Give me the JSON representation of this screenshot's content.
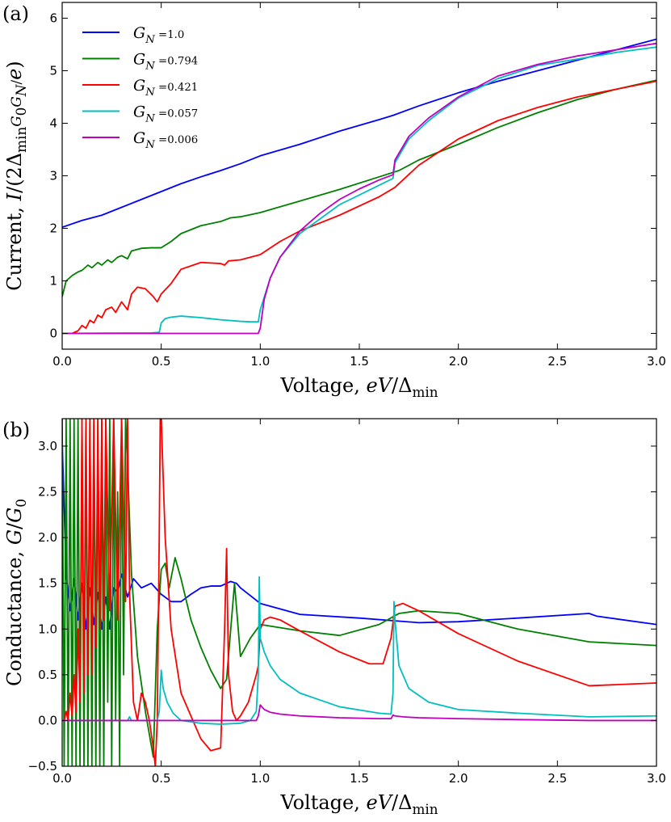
{
  "chart_data": [
    {
      "type": "line",
      "panel_label": "(a)",
      "xlabel": "Voltage, eV/Δmin",
      "ylabel": "Current, I/(2ΔminG0GN/e)",
      "xlim": [
        0.0,
        3.0
      ],
      "ylim": [
        -0.3,
        6.3
      ],
      "xticks": [
        "0.0",
        "0.5",
        "1.0",
        "1.5",
        "2.0",
        "2.5",
        "3.0"
      ],
      "xtick_values": [
        0.0,
        0.5,
        1.0,
        1.5,
        2.0,
        2.5,
        3.0
      ],
      "yticks": [
        "0",
        "1",
        "2",
        "3",
        "4",
        "5",
        "6"
      ],
      "ytick_values": [
        0,
        1,
        2,
        3,
        4,
        5,
        6
      ],
      "legend_position": "upper-left",
      "series": [
        {
          "name": "G_N =1.0",
          "color": "#0000ff",
          "x": [
            0.0,
            0.1,
            0.2,
            0.3,
            0.4,
            0.5,
            0.6,
            0.7,
            0.8,
            0.9,
            1.0,
            1.2,
            1.4,
            1.6,
            1.67,
            1.8,
            2.0,
            2.2,
            2.4,
            2.6,
            2.8,
            3.0
          ],
          "y": [
            2.02,
            2.15,
            2.25,
            2.4,
            2.55,
            2.7,
            2.85,
            2.98,
            3.1,
            3.23,
            3.38,
            3.6,
            3.85,
            4.07,
            4.15,
            4.33,
            4.58,
            4.8,
            5.0,
            5.2,
            5.4,
            5.6
          ]
        },
        {
          "name": "G_N =0.794",
          "color": "#008000",
          "x": [
            0.0,
            0.02,
            0.05,
            0.08,
            0.1,
            0.13,
            0.15,
            0.18,
            0.2,
            0.23,
            0.25,
            0.28,
            0.3,
            0.33,
            0.35,
            0.4,
            0.45,
            0.5,
            0.55,
            0.6,
            0.7,
            0.8,
            0.85,
            0.9,
            1.0,
            1.2,
            1.4,
            1.6,
            1.7,
            1.8,
            2.0,
            2.2,
            2.4,
            2.6,
            2.8,
            3.0
          ],
          "y": [
            0.7,
            1.0,
            1.1,
            1.17,
            1.2,
            1.3,
            1.25,
            1.35,
            1.3,
            1.4,
            1.35,
            1.45,
            1.48,
            1.42,
            1.57,
            1.62,
            1.63,
            1.63,
            1.75,
            1.9,
            2.05,
            2.13,
            2.2,
            2.22,
            2.3,
            2.52,
            2.74,
            2.98,
            3.1,
            3.3,
            3.6,
            3.92,
            4.2,
            4.45,
            4.65,
            4.82
          ]
        },
        {
          "name": "G_N =0.421",
          "color": "#ff0000",
          "x": [
            0.05,
            0.08,
            0.1,
            0.12,
            0.14,
            0.16,
            0.18,
            0.2,
            0.22,
            0.25,
            0.27,
            0.3,
            0.33,
            0.35,
            0.38,
            0.42,
            0.46,
            0.48,
            0.5,
            0.55,
            0.6,
            0.7,
            0.8,
            0.82,
            0.84,
            0.9,
            1.0,
            1.1,
            1.2,
            1.4,
            1.6,
            1.68,
            1.8,
            2.0,
            2.2,
            2.4,
            2.6,
            2.8,
            3.0
          ],
          "y": [
            0.0,
            0.05,
            0.15,
            0.1,
            0.25,
            0.2,
            0.35,
            0.3,
            0.45,
            0.5,
            0.4,
            0.6,
            0.45,
            0.75,
            0.88,
            0.85,
            0.7,
            0.6,
            0.75,
            0.95,
            1.22,
            1.35,
            1.33,
            1.3,
            1.38,
            1.4,
            1.5,
            1.75,
            1.95,
            2.25,
            2.6,
            2.78,
            3.2,
            3.7,
            4.05,
            4.3,
            4.5,
            4.65,
            4.8
          ]
        },
        {
          "name": "G_N =0.057",
          "color": "#00bfbf",
          "x": [
            0.0,
            0.45,
            0.49,
            0.5,
            0.52,
            0.55,
            0.6,
            0.7,
            0.8,
            0.9,
            0.95,
            0.99,
            1.0,
            1.05,
            1.1,
            1.2,
            1.4,
            1.6,
            1.67,
            1.68,
            1.75,
            1.85,
            2.0,
            2.2,
            2.4,
            2.6,
            2.8,
            3.0
          ],
          "y": [
            0.0,
            0.01,
            0.02,
            0.2,
            0.28,
            0.31,
            0.33,
            0.3,
            0.26,
            0.23,
            0.22,
            0.22,
            0.45,
            1.05,
            1.45,
            1.9,
            2.45,
            2.82,
            2.95,
            3.25,
            3.7,
            4.05,
            4.48,
            4.85,
            5.1,
            5.22,
            5.35,
            5.45
          ]
        },
        {
          "name": "G_N =0.006",
          "color": "#bf00bf",
          "x": [
            0.0,
            0.99,
            1.0,
            1.02,
            1.05,
            1.1,
            1.2,
            1.3,
            1.4,
            1.5,
            1.6,
            1.67,
            1.68,
            1.75,
            1.85,
            2.0,
            2.2,
            2.4,
            2.6,
            2.8,
            3.0
          ],
          "y": [
            0.0,
            0.0,
            0.1,
            0.65,
            1.05,
            1.45,
            1.95,
            2.28,
            2.55,
            2.75,
            2.92,
            3.02,
            3.3,
            3.75,
            4.1,
            4.5,
            4.9,
            5.12,
            5.28,
            5.4,
            5.52
          ]
        }
      ]
    },
    {
      "type": "line",
      "panel_label": "(b)",
      "xlabel": "Voltage, eV/Δmin",
      "ylabel": "Conductance, G/G0",
      "xlim": [
        0.0,
        3.0
      ],
      "ylim": [
        -0.5,
        3.3
      ],
      "xticks": [
        "0.0",
        "0.5",
        "1.0",
        "1.5",
        "2.0",
        "2.5",
        "3.0"
      ],
      "xtick_values": [
        0.0,
        0.5,
        1.0,
        1.5,
        2.0,
        2.5,
        3.0
      ],
      "yticks": [
        "−0.5",
        "0.0",
        "0.5",
        "1.0",
        "1.5",
        "2.0",
        "2.5",
        "3.0"
      ],
      "ytick_values": [
        -0.5,
        0.0,
        0.5,
        1.0,
        1.5,
        2.0,
        2.5,
        3.0
      ],
      "series": [
        {
          "name": "G_N =1.0",
          "color": "#0000ff",
          "x": [
            0.0,
            0.005,
            0.02,
            0.04,
            0.06,
            0.08,
            0.1,
            0.12,
            0.14,
            0.16,
            0.18,
            0.2,
            0.22,
            0.24,
            0.26,
            0.28,
            0.3,
            0.33,
            0.36,
            0.4,
            0.45,
            0.5,
            0.55,
            0.6,
            0.65,
            0.7,
            0.75,
            0.8,
            0.85,
            0.88,
            0.9,
            1.0,
            1.2,
            1.5,
            1.8,
            2.0,
            2.3,
            2.66,
            2.7,
            3.0
          ],
          "y": [
            3.05,
            2.7,
            1.6,
            1.2,
            1.55,
            1.1,
            1.5,
            1.0,
            1.45,
            1.05,
            1.4,
            1.0,
            1.35,
            1.0,
            1.45,
            1.4,
            1.6,
            1.35,
            1.55,
            1.45,
            1.5,
            1.38,
            1.3,
            1.3,
            1.38,
            1.45,
            1.47,
            1.47,
            1.52,
            1.5,
            1.45,
            1.28,
            1.16,
            1.12,
            1.07,
            1.08,
            1.12,
            1.17,
            1.14,
            1.05
          ]
        },
        {
          "name": "G_N =0.794",
          "color": "#008000",
          "x": [
            0.0,
            0.01,
            0.02,
            0.03,
            0.04,
            0.05,
            0.06,
            0.07,
            0.08,
            0.09,
            0.1,
            0.11,
            0.12,
            0.13,
            0.14,
            0.15,
            0.16,
            0.17,
            0.18,
            0.19,
            0.2,
            0.21,
            0.22,
            0.23,
            0.24,
            0.25,
            0.26,
            0.27,
            0.28,
            0.29,
            0.3,
            0.31,
            0.32,
            0.33,
            0.35,
            0.38,
            0.42,
            0.46,
            0.48,
            0.5,
            0.52,
            0.54,
            0.57,
            0.6,
            0.65,
            0.7,
            0.75,
            0.8,
            0.83,
            0.87,
            0.9,
            0.95,
            1.0,
            1.2,
            1.4,
            1.6,
            1.7,
            1.8,
            2.0,
            2.3,
            2.66,
            3.0
          ],
          "y": [
            3.3,
            -0.5,
            3.3,
            -0.5,
            3.3,
            -0.5,
            3.3,
            -0.5,
            3.3,
            -0.5,
            3.3,
            -0.5,
            3.3,
            -0.5,
            3.3,
            -0.5,
            3.3,
            -0.5,
            3.3,
            -0.5,
            3.3,
            -0.5,
            3.3,
            0.2,
            3.3,
            -0.5,
            3.3,
            0.0,
            2.5,
            -0.5,
            3.3,
            0.5,
            3.3,
            2.8,
            1.6,
            0.7,
            0.1,
            -0.4,
            1.0,
            1.65,
            1.72,
            1.45,
            1.78,
            1.55,
            1.1,
            0.8,
            0.55,
            0.35,
            0.45,
            1.5,
            0.7,
            0.9,
            1.05,
            0.98,
            0.93,
            1.05,
            1.17,
            1.2,
            1.17,
            1.0,
            0.86,
            0.82
          ]
        },
        {
          "name": "G_N =0.421",
          "color": "#ff0000",
          "x": [
            0.0,
            0.01,
            0.02,
            0.03,
            0.04,
            0.05,
            0.06,
            0.07,
            0.08,
            0.09,
            0.1,
            0.11,
            0.12,
            0.13,
            0.14,
            0.15,
            0.16,
            0.17,
            0.18,
            0.19,
            0.2,
            0.21,
            0.22,
            0.24,
            0.26,
            0.28,
            0.3,
            0.32,
            0.33,
            0.34,
            0.36,
            0.38,
            0.4,
            0.42,
            0.44,
            0.46,
            0.47,
            0.48,
            0.49,
            0.495,
            0.5,
            0.52,
            0.55,
            0.6,
            0.7,
            0.75,
            0.8,
            0.82,
            0.83,
            0.84,
            0.86,
            0.88,
            0.9,
            0.94,
            0.98,
            0.99,
            1.0,
            1.02,
            1.05,
            1.1,
            1.2,
            1.4,
            1.55,
            1.62,
            1.66,
            1.68,
            1.72,
            1.8,
            2.0,
            2.3,
            2.66,
            3.0
          ],
          "y": [
            0.0,
            0.0,
            0.1,
            0.0,
            0.3,
            0.05,
            0.5,
            0.1,
            1.0,
            0.2,
            3.3,
            0.3,
            3.3,
            0.5,
            3.3,
            0.5,
            3.3,
            0.8,
            3.3,
            1.0,
            3.3,
            1.1,
            3.3,
            1.2,
            3.3,
            1.1,
            3.3,
            1.3,
            3.3,
            1.4,
            0.2,
            0.0,
            0.3,
            0.2,
            0.0,
            -0.3,
            -0.5,
            0.0,
            2.0,
            3.3,
            3.3,
            2.0,
            1.0,
            0.3,
            -0.2,
            -0.33,
            -0.3,
            1.0,
            1.88,
            0.5,
            0.1,
            0.0,
            0.05,
            0.2,
            0.5,
            0.6,
            1.0,
            1.1,
            1.13,
            1.1,
            0.98,
            0.75,
            0.62,
            0.62,
            0.9,
            1.25,
            1.28,
            1.2,
            0.95,
            0.65,
            0.38,
            0.41
          ]
        },
        {
          "name": "G_N =0.057",
          "color": "#00bfbf",
          "x": [
            0.0,
            0.33,
            0.34,
            0.35,
            0.48,
            0.49,
            0.5,
            0.51,
            0.53,
            0.56,
            0.6,
            0.7,
            0.8,
            0.9,
            0.95,
            0.98,
            0.99,
            0.995,
            1.0,
            1.02,
            1.05,
            1.1,
            1.2,
            1.4,
            1.6,
            1.66,
            1.67,
            1.675,
            1.68,
            1.7,
            1.75,
            1.85,
            2.0,
            2.3,
            2.66,
            3.0
          ],
          "y": [
            0.0,
            0.0,
            0.04,
            0.0,
            0.0,
            0.1,
            0.55,
            0.35,
            0.2,
            0.08,
            0.0,
            -0.03,
            -0.04,
            -0.03,
            0.0,
            0.1,
            0.5,
            1.57,
            0.9,
            0.75,
            0.6,
            0.45,
            0.3,
            0.15,
            0.08,
            0.07,
            0.3,
            1.3,
            1.1,
            0.6,
            0.35,
            0.2,
            0.12,
            0.08,
            0.04,
            0.05
          ]
        },
        {
          "name": "G_N =0.006",
          "color": "#bf00bf",
          "x": [
            0.0,
            0.98,
            0.99,
            1.0,
            1.02,
            1.05,
            1.1,
            1.2,
            1.4,
            1.6,
            1.66,
            1.67,
            1.68,
            1.72,
            1.8,
            2.0,
            2.3,
            2.66,
            3.0
          ],
          "y": [
            0.0,
            0.0,
            0.05,
            0.17,
            0.12,
            0.09,
            0.07,
            0.05,
            0.03,
            0.02,
            0.02,
            0.06,
            0.05,
            0.04,
            0.03,
            0.02,
            0.01,
            0.0,
            0.0
          ]
        }
      ]
    }
  ]
}
